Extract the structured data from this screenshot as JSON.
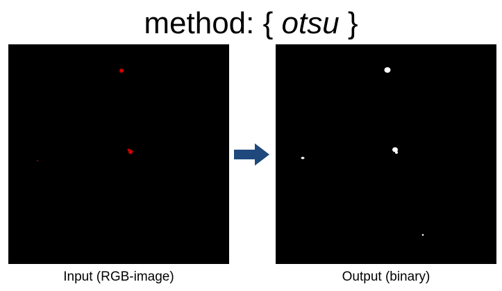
{
  "title": {
    "prefix": "method: { ",
    "method": "otsu",
    "suffix": " }"
  },
  "input": {
    "caption": "Input (RGB-image)",
    "background": "#000000",
    "blob_color": "#cc0000"
  },
  "output": {
    "caption": "Output (binary)",
    "background": "#000000",
    "blob_color": "#ffffff"
  },
  "arrow": {
    "color": "#1f497d",
    "icon": "right-arrow-icon"
  }
}
